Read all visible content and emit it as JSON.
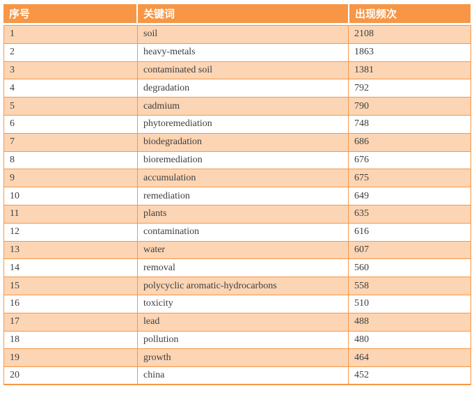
{
  "chart_data": {
    "type": "table",
    "title": "",
    "columns": [
      "序号",
      "关键词",
      "出现频次"
    ],
    "rows": [
      {
        "index": "1",
        "keyword": "soil",
        "frequency": "2108"
      },
      {
        "index": "2",
        "keyword": "heavy-metals",
        "frequency": "1863"
      },
      {
        "index": "3",
        "keyword": "contaminated soil",
        "frequency": "1381"
      },
      {
        "index": "4",
        "keyword": "degradation",
        "frequency": "792"
      },
      {
        "index": "5",
        "keyword": "cadmium",
        "frequency": "790"
      },
      {
        "index": "6",
        "keyword": "phytoremediation",
        "frequency": "748"
      },
      {
        "index": "7",
        "keyword": "biodegradation",
        "frequency": "686"
      },
      {
        "index": "8",
        "keyword": "bioremediation",
        "frequency": "676"
      },
      {
        "index": "9",
        "keyword": "accumulation",
        "frequency": "675"
      },
      {
        "index": "10",
        "keyword": "remediation",
        "frequency": "649"
      },
      {
        "index": "11",
        "keyword": "plants",
        "frequency": "635"
      },
      {
        "index": "12",
        "keyword": "contamination",
        "frequency": "616"
      },
      {
        "index": "13",
        "keyword": "water",
        "frequency": "607"
      },
      {
        "index": "14",
        "keyword": "removal",
        "frequency": "560"
      },
      {
        "index": "15",
        "keyword": "polycyclic aromatic-hydrocarbons",
        "frequency": "558"
      },
      {
        "index": "16",
        "keyword": "toxicity",
        "frequency": "510"
      },
      {
        "index": "17",
        "keyword": "lead",
        "frequency": "488"
      },
      {
        "index": "18",
        "keyword": "pollution",
        "frequency": "480"
      },
      {
        "index": "19",
        "keyword": "growth",
        "frequency": "464"
      },
      {
        "index": "20",
        "keyword": "china",
        "frequency": "452"
      }
    ]
  },
  "colors": {
    "header_bg": "#F79646",
    "row_alt_bg": "#FCD5B4",
    "row_bg": "#FFFFFF",
    "border": "#F79646",
    "header_text": "#FFFFFF",
    "body_text": "#3E3E3E"
  }
}
